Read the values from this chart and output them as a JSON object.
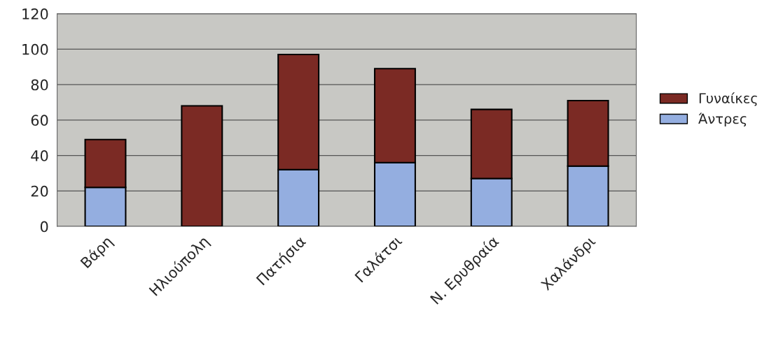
{
  "chart_data": {
    "type": "bar",
    "stacked": true,
    "categories": [
      "Βάρη",
      "Ηλιούπολη",
      "Πατήσια",
      "Γαλάτσι",
      "Ν. Ερυθραία",
      "Χαλάνδρι"
    ],
    "series": [
      {
        "name": "Άντρες",
        "color": "#94aee0",
        "values": [
          22,
          0,
          32,
          36,
          27,
          34
        ]
      },
      {
        "name": "Γυναίκες",
        "color": "#7b2a24",
        "values": [
          27,
          68,
          65,
          53,
          39,
          37
        ]
      }
    ],
    "ylim": [
      0,
      120
    ],
    "yticks": [
      0,
      20,
      40,
      60,
      80,
      100,
      120
    ],
    "grid": "y",
    "legend": "right"
  }
}
